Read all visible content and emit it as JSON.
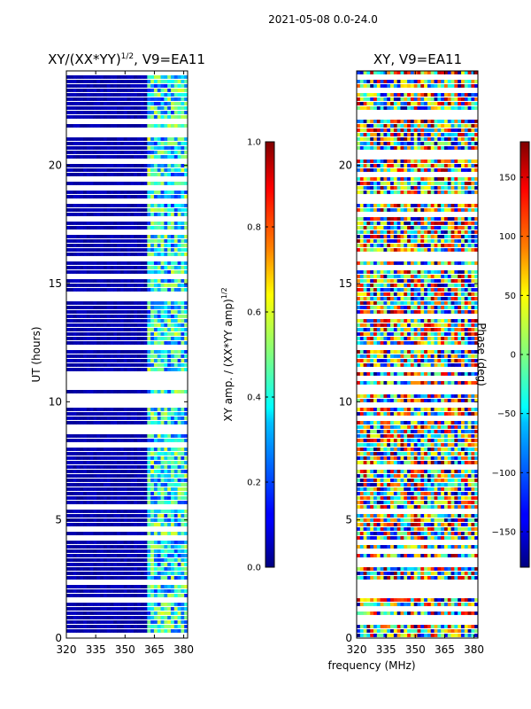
{
  "figure": {
    "suptitle": "2021-05-08 0.0-24.0",
    "xlabel": "frequency (MHz)"
  },
  "chart_data": [
    {
      "type": "heatmap",
      "title": "XY/(XX*YY)",
      "title_sup": "1/2",
      "title_tail": ", V9=EA11",
      "xlabel": "",
      "ylabel": "UT (hours)",
      "xlim": [
        320,
        382
      ],
      "ylim": [
        0,
        24
      ],
      "xticks": [
        320,
        335,
        350,
        365,
        380
      ],
      "yticks": [
        0,
        5,
        10,
        15,
        20
      ],
      "colorbar": {
        "label": "XY amp. / (XX*YY amp)",
        "label_sup": "1/2",
        "range": [
          0.0,
          1.0
        ],
        "ticks": [
          "0.0",
          "0.2",
          "0.4",
          "0.6",
          "0.8",
          "1.0"
        ],
        "colormap": "jet"
      }
    },
    {
      "type": "heatmap",
      "title": "XY, V9=EA11",
      "xlabel": "",
      "ylabel": "",
      "xlim": [
        320,
        382
      ],
      "ylim": [
        0,
        24
      ],
      "xticks": [
        320,
        335,
        350,
        365,
        380
      ],
      "yticks": [
        0,
        5,
        10,
        15,
        20
      ],
      "colorbar": {
        "label": "Phase (deg)",
        "range": [
          -180,
          180
        ],
        "ticks": [
          "−150",
          "−100",
          "−50",
          "0",
          "50",
          "100",
          "150"
        ],
        "colormap": "jet"
      }
    }
  ]
}
